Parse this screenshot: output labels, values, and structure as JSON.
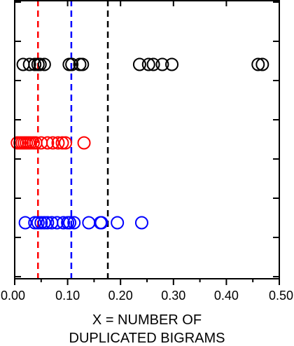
{
  "chart_data": {
    "type": "scatter",
    "title": "",
    "xlabel_lines": [
      "X = NUMBER OF",
      "DUPLICATED BIGRAMS"
    ],
    "ylabel": "",
    "xlim": [
      0.0,
      0.5
    ],
    "x_ticks": [
      0.0,
      0.1,
      0.2,
      0.3,
      0.4,
      0.5
    ],
    "x_tick_labels": [
      "0.00",
      "0.10",
      "0.20",
      "0.30",
      "0.40",
      "0.50"
    ],
    "grid": false,
    "series": [
      {
        "color": "#000000",
        "row": 1,
        "x": [
          0.016,
          0.028,
          0.038,
          0.044,
          0.048,
          0.056,
          0.103,
          0.108,
          0.123,
          0.128,
          0.236,
          0.253,
          0.262,
          0.279,
          0.297,
          0.46,
          0.468
        ]
      },
      {
        "color": "#ff0000",
        "row": 2,
        "x": [
          0.005,
          0.01,
          0.014,
          0.018,
          0.022,
          0.026,
          0.03,
          0.035,
          0.04,
          0.05,
          0.062,
          0.072,
          0.082,
          0.09,
          0.096,
          0.131
        ]
      },
      {
        "color": "#0000ff",
        "row": 3,
        "x": [
          0.02,
          0.038,
          0.044,
          0.05,
          0.056,
          0.062,
          0.07,
          0.08,
          0.092,
          0.1,
          0.104,
          0.112,
          0.14,
          0.162,
          0.164,
          0.194,
          0.24
        ]
      }
    ],
    "reference_lines": [
      {
        "x": 0.044,
        "color": "#ff0000",
        "style": "dashed"
      },
      {
        "x": 0.107,
        "color": "#0000ff",
        "style": "dashed"
      },
      {
        "x": 0.176,
        "color": "#000000",
        "style": "dashed"
      }
    ]
  }
}
